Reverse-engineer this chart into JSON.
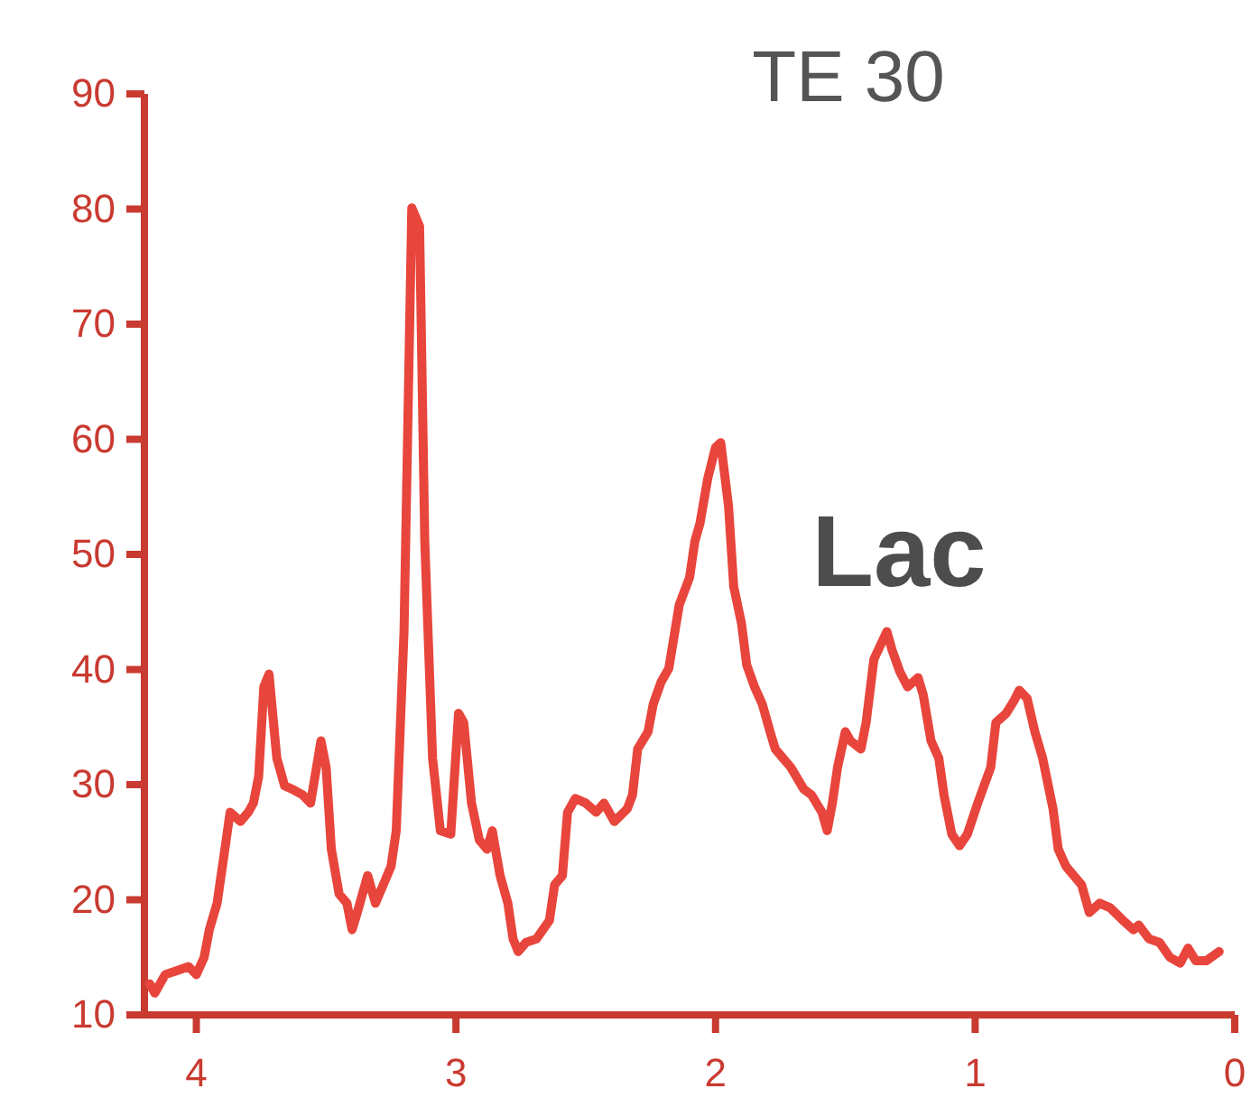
{
  "chart_data": {
    "type": "line",
    "title": "TE 30",
    "annotations": [
      "Lac"
    ],
    "xlim": [
      4.2,
      0
    ],
    "xticks": [
      4,
      3,
      2,
      1,
      0
    ],
    "ylim": [
      10,
      90
    ],
    "yticks": [
      10,
      20,
      30,
      40,
      50,
      60,
      70,
      80,
      90
    ],
    "grid": false,
    "marker": "none",
    "line_style": "solid",
    "series": [
      {
        "color": "#e8453c",
        "x": [
          4.18,
          4.16,
          4.12,
          4.08,
          4.03,
          4.0,
          3.97,
          3.95,
          3.92,
          3.89,
          3.87,
          3.83,
          3.8,
          3.78,
          3.76,
          3.74,
          3.72,
          3.69,
          3.66,
          3.63,
          3.59,
          3.56,
          3.52,
          3.5,
          3.48,
          3.45,
          3.42,
          3.4,
          3.38,
          3.34,
          3.31,
          3.28,
          3.25,
          3.23,
          3.2,
          3.17,
          3.14,
          3.12,
          3.09,
          3.06,
          3.02,
          2.99,
          2.97,
          2.94,
          2.91,
          2.88,
          2.86,
          2.83,
          2.8,
          2.78,
          2.76,
          2.73,
          2.69,
          2.64,
          2.62,
          2.59,
          2.57,
          2.54,
          2.5,
          2.46,
          2.43,
          2.39,
          2.34,
          2.32,
          2.3,
          2.26,
          2.24,
          2.21,
          2.18,
          2.14,
          2.1,
          2.08,
          2.06,
          2.03,
          2.0,
          1.98,
          1.95,
          1.93,
          1.9,
          1.88,
          1.85,
          1.82,
          1.79,
          1.77,
          1.74,
          1.71,
          1.66,
          1.63,
          1.59,
          1.57,
          1.55,
          1.53,
          1.5,
          1.48,
          1.44,
          1.42,
          1.39,
          1.34,
          1.32,
          1.29,
          1.26,
          1.22,
          1.2,
          1.17,
          1.14,
          1.12,
          1.09,
          1.06,
          1.03,
          0.99,
          0.94,
          0.92,
          0.88,
          0.85,
          0.83,
          0.8,
          0.77,
          0.74,
          0.7,
          0.68,
          0.65,
          0.62,
          0.59,
          0.56,
          0.52,
          0.48,
          0.43,
          0.39,
          0.37,
          0.33,
          0.29,
          0.25,
          0.21,
          0.18,
          0.15,
          0.11,
          0.06
        ],
        "values": [
          12.7,
          11.9,
          13.5,
          13.8,
          14.2,
          13.5,
          15.0,
          17.4,
          19.7,
          24.4,
          27.6,
          26.8,
          27.6,
          28.4,
          30.7,
          38.5,
          39.6,
          32.3,
          29.9,
          29.6,
          29.1,
          28.4,
          33.8,
          31.5,
          24.4,
          20.5,
          19.7,
          17.4,
          18.9,
          22.1,
          19.7,
          21.3,
          22.9,
          26.0,
          43.3,
          80.1,
          78.5,
          51.1,
          32.3,
          26.0,
          25.7,
          36.2,
          35.4,
          28.4,
          25.2,
          24.4,
          26.0,
          22.1,
          19.7,
          16.6,
          15.5,
          16.3,
          16.6,
          18.2,
          21.3,
          22.1,
          27.6,
          28.8,
          28.4,
          27.6,
          28.4,
          26.8,
          27.9,
          29.1,
          33.1,
          34.6,
          37.0,
          38.9,
          40.1,
          45.6,
          48.0,
          51.1,
          52.7,
          56.6,
          59.3,
          59.7,
          54.2,
          47.2,
          44.0,
          40.4,
          38.5,
          37.0,
          34.6,
          33.1,
          32.3,
          31.5,
          29.6,
          29.1,
          27.6,
          26.0,
          28.4,
          31.5,
          34.6,
          33.8,
          33.1,
          35.4,
          40.9,
          43.3,
          41.7,
          39.8,
          38.5,
          39.3,
          37.8,
          33.8,
          32.3,
          29.1,
          25.7,
          24.7,
          25.7,
          28.4,
          31.5,
          35.4,
          36.2,
          37.3,
          38.2,
          37.5,
          34.6,
          32.3,
          27.9,
          24.4,
          22.9,
          22.1,
          21.3,
          18.9,
          19.7,
          19.3,
          18.2,
          17.4,
          17.8,
          16.6,
          16.3,
          15.0,
          14.5,
          15.8,
          14.7,
          14.7,
          15.5
        ]
      }
    ]
  }
}
